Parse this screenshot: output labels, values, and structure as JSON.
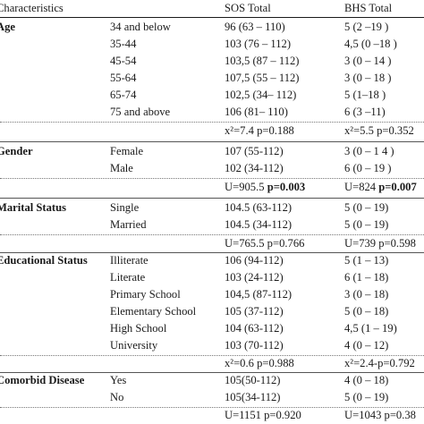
{
  "header": {
    "characteristics": "Characteristics",
    "sos_total": "SOS Total",
    "bhs_total": "BHS Total"
  },
  "sections": [
    {
      "name": "Age",
      "rows": [
        {
          "sub": "34 and below",
          "sos": "96 (63 – 110)",
          "bhs": "5 (2 –19 )"
        },
        {
          "sub": "35-44",
          "sos": "103 (76 – 112)",
          "bhs": "4,5 (0 –18 )"
        },
        {
          "sub": "45-54",
          "sos": "103,5 (87 – 112)",
          "bhs": "3 (0 – 14 )"
        },
        {
          "sub": "55-64",
          "sos": "107,5 (55 – 112)",
          "bhs": "3 (0 – 18 )"
        },
        {
          "sub": "65-74",
          "sos": "102,5 (34– 112)",
          "bhs": "5 (1–18 )"
        },
        {
          "sub": "75 and above",
          "sos": "106 (81– 110)",
          "bhs": "6 (3 –11)"
        }
      ],
      "stat": {
        "sos": "x²=7.4 p=0.188",
        "bhs": "x²=5.5 p=0.352"
      }
    },
    {
      "name": "Gender",
      "rows": [
        {
          "sub": "Female",
          "sos": "107 (55-112)",
          "bhs": "3 (0 – 1 4 )"
        },
        {
          "sub": "Male",
          "sos": "102 (34-112)",
          "bhs": "6 (0 – 19 )"
        }
      ],
      "stat": {
        "sos_pre": "U=905.5 ",
        "sos_bold": "p=0.003",
        "bhs_pre": "U=824 ",
        "bhs_bold": "p=0.007"
      }
    },
    {
      "name": "Marital Status",
      "rows": [
        {
          "sub": "Single",
          "sos": "104.5 (63-112)",
          "bhs": "5 (0 – 19)"
        },
        {
          "sub": "Married",
          "sos": "104.5 (34-112)",
          "bhs": "5 (0 – 19)"
        }
      ],
      "stat": {
        "sos": "U=765.5 p=0.766",
        "bhs": "U=739 p=0.598"
      }
    },
    {
      "name": "Educational Status",
      "rows": [
        {
          "sub": "Illiterate",
          "sos": "106 (94-112)",
          "bhs": "5 (1 – 13)"
        },
        {
          "sub": "Literate",
          "sos": "103 (24-112)",
          "bhs": "6 (1 – 18)"
        },
        {
          "sub": "Primary School",
          "sos": "104,5 (87-112)",
          "bhs": "3 (0 – 18)"
        },
        {
          "sub": "Elementary School",
          "sos": "105 (37-112)",
          "bhs": "5 (0 – 18)"
        },
        {
          "sub": "High School",
          "sos": "104 (63-112)",
          "bhs": "4,5 (1 – 19)"
        },
        {
          "sub": "University",
          "sos": "103 (70-112)",
          "bhs": "4 (0 – 12)"
        }
      ],
      "stat": {
        "sos": "x²=0.6 p=0.988",
        "bhs": "x²=2.4-p=0.792"
      }
    },
    {
      "name": "Comorbid Disease",
      "rows": [
        {
          "sub": "Yes",
          "sos": "105(50-112)",
          "bhs": "4 (0 – 18)"
        },
        {
          "sub": "No",
          "sos": "105(34-112)",
          "bhs": "5 (0 – 19)"
        }
      ],
      "stat": {
        "sos": "U=1151 p=0.920",
        "bhs": "U=1043 p=0.38"
      }
    }
  ]
}
